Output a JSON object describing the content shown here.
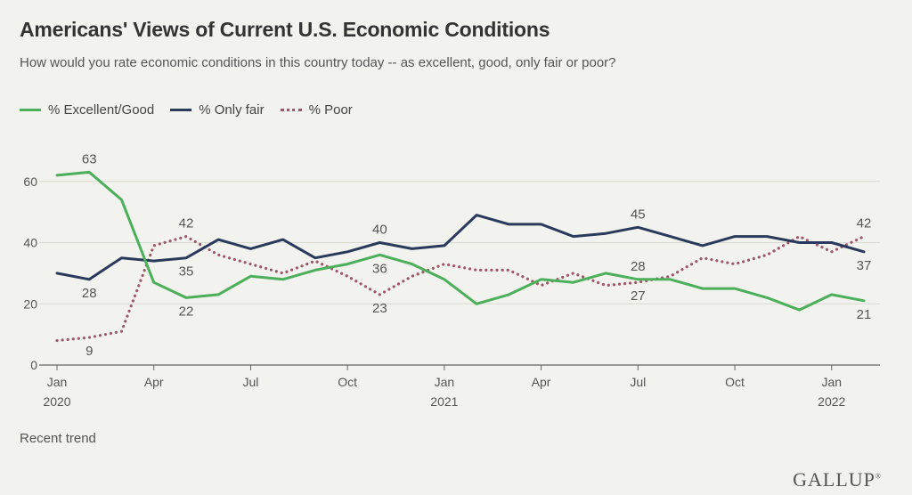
{
  "header": {
    "title": "Americans' Views of Current U.S. Economic Conditions",
    "subtitle": "How would you rate economic conditions in this country today -- as excellent, good, only fair or poor?"
  },
  "footer": {
    "note": "Recent trend",
    "logo": "GALLUP",
    "logo_mark": "®"
  },
  "chart_data": {
    "type": "line",
    "title": "Americans' Views of Current U.S. Economic Conditions",
    "subtitle": "How would you rate economic conditions in this country today -- as excellent, good, only fair or poor?",
    "x": [
      "2020-01",
      "2020-02",
      "2020-03",
      "2020-04",
      "2020-05",
      "2020-06",
      "2020-07",
      "2020-08",
      "2020-09",
      "2020-10",
      "2020-11",
      "2020-12",
      "2021-01",
      "2021-02",
      "2021-03",
      "2021-04",
      "2021-05",
      "2021-06",
      "2021-07",
      "2021-08",
      "2021-09",
      "2021-10",
      "2021-11",
      "2021-12",
      "2022-01",
      "2022-02"
    ],
    "x_ticks": [
      {
        "x": "2020-01",
        "label": "Jan",
        "sublabel": "2020"
      },
      {
        "x": "2020-04",
        "label": "Apr",
        "sublabel": ""
      },
      {
        "x": "2020-07",
        "label": "Jul",
        "sublabel": ""
      },
      {
        "x": "2020-10",
        "label": "Oct",
        "sublabel": ""
      },
      {
        "x": "2021-01",
        "label": "Jan",
        "sublabel": "2021"
      },
      {
        "x": "2021-04",
        "label": "Apr",
        "sublabel": ""
      },
      {
        "x": "2021-07",
        "label": "Jul",
        "sublabel": ""
      },
      {
        "x": "2021-10",
        "label": "Oct",
        "sublabel": ""
      },
      {
        "x": "2022-01",
        "label": "Jan",
        "sublabel": "2022"
      }
    ],
    "y_ticks": [
      0,
      20,
      40,
      60
    ],
    "ylim": [
      0,
      63
    ],
    "grid": true,
    "legend": "top-left",
    "series": [
      {
        "name": "% Excellent/Good",
        "color": "#4caf5a",
        "style": "solid",
        "values": [
          62,
          63,
          54,
          27,
          22,
          23,
          29,
          28,
          31,
          33,
          36,
          33,
          28,
          20,
          23,
          28,
          27,
          30,
          28,
          28,
          25,
          25,
          22,
          18,
          23,
          21
        ]
      },
      {
        "name": "% Only fair",
        "color": "#2a3a5c",
        "style": "solid",
        "values": [
          30,
          28,
          35,
          34,
          35,
          41,
          38,
          41,
          35,
          37,
          40,
          38,
          39,
          49,
          46,
          46,
          42,
          43,
          45,
          42,
          39,
          42,
          42,
          40,
          40,
          37
        ]
      },
      {
        "name": "% Poor",
        "color": "#9e5a6a",
        "style": "dotted",
        "values": [
          8,
          9,
          11,
          39,
          42,
          36,
          33,
          30,
          34,
          29,
          23,
          29,
          33,
          31,
          31,
          26,
          30,
          26,
          27,
          29,
          35,
          33,
          36,
          42,
          37,
          42
        ]
      }
    ],
    "annotations": [
      {
        "series": "% Excellent/Good",
        "x": "2020-02",
        "value": 63,
        "label": "63",
        "pos": "above"
      },
      {
        "series": "% Only fair",
        "x": "2020-02",
        "value": 28,
        "label": "28",
        "pos": "below"
      },
      {
        "series": "% Poor",
        "x": "2020-02",
        "value": 9,
        "label": "9",
        "pos": "below"
      },
      {
        "series": "% Poor",
        "x": "2020-05",
        "value": 42,
        "label": "42",
        "pos": "above"
      },
      {
        "series": "% Only fair",
        "x": "2020-05",
        "value": 35,
        "label": "35",
        "pos": "below"
      },
      {
        "series": "% Excellent/Good",
        "x": "2020-05",
        "value": 22,
        "label": "22",
        "pos": "below"
      },
      {
        "series": "% Only fair",
        "x": "2020-11",
        "value": 40,
        "label": "40",
        "pos": "above"
      },
      {
        "series": "% Excellent/Good",
        "x": "2020-11",
        "value": 36,
        "label": "36",
        "pos": "below"
      },
      {
        "series": "% Poor",
        "x": "2020-11",
        "value": 23,
        "label": "23",
        "pos": "below"
      },
      {
        "series": "% Only fair",
        "x": "2021-07",
        "value": 45,
        "label": "45",
        "pos": "above"
      },
      {
        "series": "% Excellent/Good",
        "x": "2021-07",
        "value": 28,
        "label": "28",
        "pos": "above"
      },
      {
        "series": "% Poor",
        "x": "2021-07",
        "value": 27,
        "label": "27",
        "pos": "below"
      },
      {
        "series": "% Poor",
        "x": "2022-02",
        "value": 42,
        "label": "42",
        "pos": "above"
      },
      {
        "series": "% Only fair",
        "x": "2022-02",
        "value": 37,
        "label": "37",
        "pos": "below"
      },
      {
        "series": "% Excellent/Good",
        "x": "2022-02",
        "value": 21,
        "label": "21",
        "pos": "below"
      }
    ]
  }
}
